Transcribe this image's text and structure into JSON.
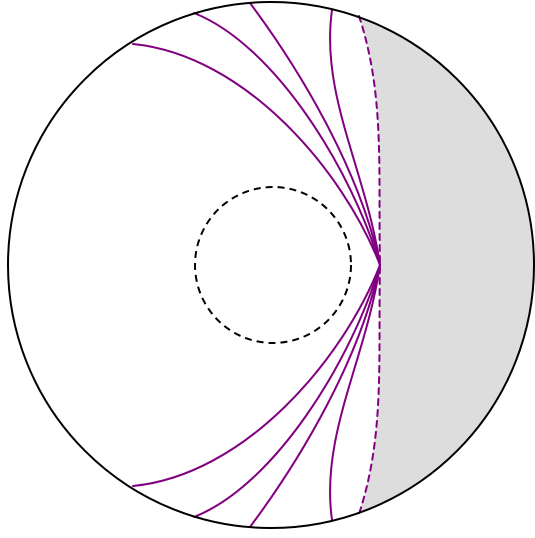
{
  "diagram": {
    "colors": {
      "background": "#ffffff",
      "outline": "#000000",
      "shaded_region": "#dddddd",
      "curve": "#800080",
      "inner_circle": "#000000"
    },
    "elements": {
      "outer_circle": "solid",
      "inner_circle": "dashed",
      "shaded_region": "right-side lune",
      "boundary_curve": "dashed",
      "curve_family_count": 4
    }
  }
}
